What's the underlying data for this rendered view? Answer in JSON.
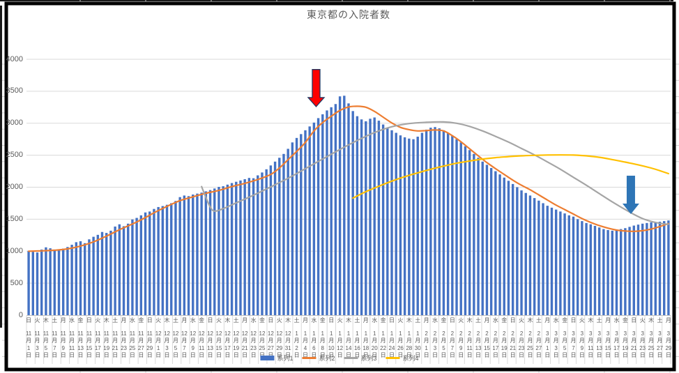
{
  "colors": {
    "text": "#595959",
    "grid": "#D9D9D9",
    "axis": "#BFBFBF",
    "chart_border": "#000000",
    "background": "#FFFFFF",
    "bar_blue": "#4472C4",
    "line_orange": "#ED7D31",
    "line_gray": "#A5A5A5",
    "line_yellow": "#FFC000",
    "arrow_red": "#FF0000",
    "arrow_red_outline": "#1F3864",
    "arrow_blue": "#2E75B6"
  },
  "chart_data": {
    "type": "bar",
    "subtype": "combo-bar-with-lines",
    "title": "東京都の入院者数",
    "ylim": [
      0,
      4000
    ],
    "ytick_interval": 500,
    "grid": true,
    "legend_position": "bottom",
    "x_unit": "day",
    "x_tick_every_days": 2,
    "x_tick_format": {
      "month_suffix": "月",
      "day_suffix": "日"
    },
    "x_ticks": [
      [
        "日",
        11,
        1
      ],
      [
        "火",
        11,
        3
      ],
      [
        "木",
        11,
        5
      ],
      [
        "土",
        11,
        7
      ],
      [
        "月",
        11,
        9
      ],
      [
        "水",
        11,
        11
      ],
      [
        "金",
        11,
        13
      ],
      [
        "日",
        11,
        15
      ],
      [
        "火",
        11,
        17
      ],
      [
        "木",
        11,
        19
      ],
      [
        "土",
        11,
        21
      ],
      [
        "月",
        11,
        23
      ],
      [
        "水",
        11,
        25
      ],
      [
        "金",
        11,
        27
      ],
      [
        "日",
        11,
        29
      ],
      [
        "火",
        12,
        1
      ],
      [
        "木",
        12,
        3
      ],
      [
        "土",
        12,
        5
      ],
      [
        "月",
        12,
        7
      ],
      [
        "水",
        12,
        9
      ],
      [
        "金",
        12,
        11
      ],
      [
        "日",
        12,
        13
      ],
      [
        "火",
        12,
        15
      ],
      [
        "木",
        12,
        17
      ],
      [
        "土",
        12,
        19
      ],
      [
        "月",
        12,
        21
      ],
      [
        "水",
        12,
        23
      ],
      [
        "金",
        12,
        25
      ],
      [
        "日",
        12,
        27
      ],
      [
        "火",
        12,
        29
      ],
      [
        "木",
        12,
        31
      ],
      [
        "土",
        1,
        2
      ],
      [
        "月",
        1,
        4
      ],
      [
        "水",
        1,
        6
      ],
      [
        "金",
        1,
        8
      ],
      [
        "日",
        1,
        10
      ],
      [
        "火",
        1,
        12
      ],
      [
        "木",
        1,
        14
      ],
      [
        "土",
        1,
        16
      ],
      [
        "月",
        1,
        18
      ],
      [
        "水",
        1,
        20
      ],
      [
        "金",
        1,
        22
      ],
      [
        "日",
        1,
        24
      ],
      [
        "火",
        1,
        26
      ],
      [
        "木",
        1,
        28
      ],
      [
        "土",
        1,
        30
      ],
      [
        "月",
        2,
        1
      ],
      [
        "水",
        2,
        3
      ],
      [
        "金",
        2,
        5
      ],
      [
        "日",
        2,
        7
      ],
      [
        "火",
        2,
        9
      ],
      [
        "木",
        2,
        11
      ],
      [
        "土",
        2,
        13
      ],
      [
        "月",
        2,
        15
      ],
      [
        "水",
        2,
        17
      ],
      [
        "金",
        2,
        19
      ],
      [
        "日",
        2,
        21
      ],
      [
        "火",
        2,
        23
      ],
      [
        "木",
        2,
        25
      ],
      [
        "土",
        2,
        27
      ],
      [
        "月",
        3,
        1
      ],
      [
        "水",
        3,
        3
      ],
      [
        "金",
        3,
        5
      ],
      [
        "日",
        3,
        7
      ],
      [
        "火",
        3,
        9
      ],
      [
        "木",
        3,
        11
      ],
      [
        "土",
        3,
        13
      ],
      [
        "月",
        3,
        15
      ],
      [
        "水",
        3,
        17
      ],
      [
        "金",
        3,
        19
      ],
      [
        "日",
        3,
        21
      ],
      [
        "火",
        3,
        23
      ],
      [
        "木",
        3,
        25
      ],
      [
        "土",
        3,
        27
      ],
      [
        "月",
        3,
        29
      ]
    ],
    "series": [
      {
        "name": "系列1",
        "type": "bar",
        "color": "#4472C4",
        "values": [
          1005,
          990,
          980,
          1025,
          1060,
          1045,
          1020,
          1010,
          1040,
          1065,
          1100,
          1140,
          1155,
          1125,
          1185,
          1225,
          1255,
          1300,
          1285,
          1320,
          1385,
          1420,
          1390,
          1430,
          1495,
          1520,
          1560,
          1605,
          1620,
          1660,
          1690,
          1705,
          1725,
          1750,
          1785,
          1845,
          1870,
          1860,
          1885,
          1900,
          1915,
          1935,
          1955,
          1980,
          2005,
          2015,
          2040,
          2065,
          2085,
          2105,
          2125,
          2145,
          2140,
          2185,
          2230,
          2280,
          2340,
          2400,
          2460,
          2520,
          2600,
          2700,
          2770,
          2830,
          2890,
          2950,
          3010,
          3080,
          3140,
          3200,
          3250,
          3300,
          3420,
          3430,
          3310,
          3190,
          3110,
          3060,
          3030,
          3070,
          3090,
          3040,
          2980,
          2930,
          2890,
          2850,
          2810,
          2780,
          2760,
          2750,
          2790,
          2850,
          2900,
          2930,
          2940,
          2920,
          2890,
          2850,
          2800,
          2750,
          2700,
          2640,
          2580,
          2520,
          2460,
          2400,
          2350,
          2300,
          2250,
          2200,
          2150,
          2100,
          2050,
          2000,
          1950,
          1910,
          1870,
          1830,
          1790,
          1750,
          1710,
          1680,
          1650,
          1620,
          1590,
          1560,
          1540,
          1500,
          1470,
          1440,
          1420,
          1395,
          1370,
          1345,
          1330,
          1320,
          1330,
          1345,
          1360,
          1380,
          1400,
          1415,
          1430,
          1440,
          1450,
          1455,
          1460,
          1470,
          1480
        ]
      },
      {
        "name": "系列2",
        "type": "line",
        "color": "#ED7D31",
        "points": [
          [
            0,
            1000
          ],
          [
            3,
            1005
          ],
          [
            6,
            1015
          ],
          [
            9,
            1035
          ],
          [
            12,
            1080
          ],
          [
            15,
            1145
          ],
          [
            18,
            1235
          ],
          [
            21,
            1335
          ],
          [
            24,
            1425
          ],
          [
            27,
            1525
          ],
          [
            29,
            1600
          ],
          [
            32,
            1700
          ],
          [
            35,
            1790
          ],
          [
            38,
            1850
          ],
          [
            41,
            1905
          ],
          [
            44,
            1950
          ],
          [
            47,
            2010
          ],
          [
            50,
            2060
          ],
          [
            53,
            2120
          ],
          [
            56,
            2200
          ],
          [
            58,
            2300
          ],
          [
            60,
            2430
          ],
          [
            62,
            2560
          ],
          [
            64,
            2700
          ],
          [
            66,
            2880
          ],
          [
            68,
            3010
          ],
          [
            70,
            3110
          ],
          [
            72,
            3200
          ],
          [
            74,
            3255
          ],
          [
            76,
            3265
          ],
          [
            78,
            3250
          ],
          [
            80,
            3185
          ],
          [
            82,
            3095
          ],
          [
            84,
            3005
          ],
          [
            86,
            2935
          ],
          [
            88,
            2900
          ],
          [
            90,
            2880
          ],
          [
            92,
            2885
          ],
          [
            94,
            2895
          ],
          [
            96,
            2880
          ],
          [
            98,
            2805
          ],
          [
            100,
            2710
          ],
          [
            102,
            2600
          ],
          [
            104,
            2490
          ],
          [
            106,
            2385
          ],
          [
            108,
            2290
          ],
          [
            110,
            2200
          ],
          [
            112,
            2110
          ],
          [
            114,
            2030
          ],
          [
            116,
            1960
          ],
          [
            118,
            1880
          ],
          [
            120,
            1800
          ],
          [
            122,
            1720
          ],
          [
            124,
            1650
          ],
          [
            126,
            1580
          ],
          [
            128,
            1510
          ],
          [
            130,
            1450
          ],
          [
            132,
            1400
          ],
          [
            134,
            1360
          ],
          [
            136,
            1330
          ],
          [
            138,
            1315
          ],
          [
            140,
            1310
          ],
          [
            142,
            1320
          ],
          [
            144,
            1345
          ],
          [
            146,
            1385
          ],
          [
            148,
            1430
          ]
        ]
      },
      {
        "name": "系列3",
        "type": "line",
        "color": "#A5A5A5",
        "points": [
          [
            40,
            2010
          ],
          [
            41,
            1840
          ],
          [
            42,
            1690
          ],
          [
            43,
            1625
          ],
          [
            45,
            1665
          ],
          [
            48,
            1755
          ],
          [
            52,
            1875
          ],
          [
            56,
            2005
          ],
          [
            60,
            2140
          ],
          [
            64,
            2290
          ],
          [
            68,
            2440
          ],
          [
            72,
            2590
          ],
          [
            76,
            2730
          ],
          [
            80,
            2855
          ],
          [
            84,
            2945
          ],
          [
            88,
            2995
          ],
          [
            92,
            3015
          ],
          [
            96,
            3020
          ],
          [
            99,
            3000
          ],
          [
            102,
            2950
          ],
          [
            105,
            2880
          ],
          [
            108,
            2795
          ],
          [
            111,
            2705
          ],
          [
            114,
            2605
          ],
          [
            117,
            2505
          ],
          [
            120,
            2395
          ],
          [
            123,
            2280
          ],
          [
            126,
            2155
          ],
          [
            129,
            2030
          ],
          [
            132,
            1900
          ],
          [
            135,
            1770
          ],
          [
            138,
            1650
          ],
          [
            140,
            1575
          ],
          [
            142,
            1510
          ],
          [
            144,
            1465
          ],
          [
            146,
            1435
          ],
          [
            148,
            1420
          ]
        ]
      },
      {
        "name": "系列4",
        "type": "line",
        "color": "#FFC000",
        "points": [
          [
            75,
            1830
          ],
          [
            78,
            1930
          ],
          [
            81,
            2015
          ],
          [
            84,
            2095
          ],
          [
            87,
            2165
          ],
          [
            90,
            2225
          ],
          [
            93,
            2280
          ],
          [
            96,
            2330
          ],
          [
            99,
            2375
          ],
          [
            102,
            2410
          ],
          [
            105,
            2440
          ],
          [
            108,
            2462
          ],
          [
            111,
            2478
          ],
          [
            114,
            2490
          ],
          [
            117,
            2498
          ],
          [
            120,
            2503
          ],
          [
            123,
            2505
          ],
          [
            126,
            2502
          ],
          [
            129,
            2490
          ],
          [
            132,
            2468
          ],
          [
            135,
            2432
          ],
          [
            138,
            2392
          ],
          [
            141,
            2350
          ],
          [
            144,
            2300
          ],
          [
            146,
            2258
          ],
          [
            148,
            2212
          ]
        ]
      }
    ],
    "annotations": [
      {
        "name": "red-down-arrow",
        "x_day": 66.5,
        "top_value": 3840,
        "tip_value": 3260,
        "fill": "#FF0000",
        "stroke": "#1F3864",
        "shaft_w": 11,
        "head_w": 23,
        "head_h": 13
      },
      {
        "name": "blue-down-arrow",
        "x_day": 139.3,
        "top_value": 2180,
        "tip_value": 1580,
        "fill": "#2E75B6",
        "stroke": "none",
        "shaft_w": 12,
        "head_w": 24,
        "head_h": 15
      }
    ]
  }
}
